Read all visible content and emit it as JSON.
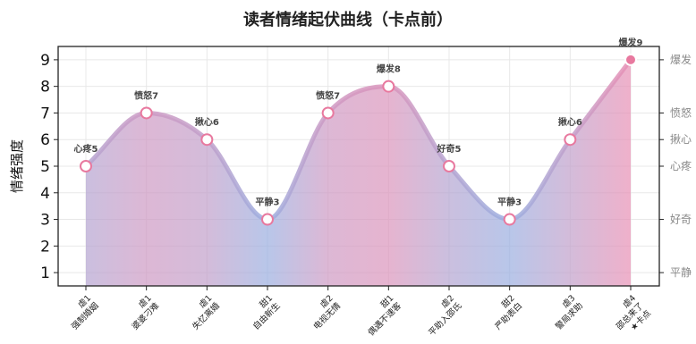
{
  "chart_data": {
    "type": "area",
    "title": "读者情绪起伏曲线（卡点前）",
    "ylabel": "情绪强度",
    "xlabel": "",
    "ylim": [
      0.5,
      9.5
    ],
    "yticks": [
      1,
      2,
      3,
      4,
      5,
      6,
      7,
      8,
      9
    ],
    "grid": true,
    "legend": "none",
    "categories": [
      [
        "虐1",
        "强制婚姻"
      ],
      [
        "虐1",
        "婆婆刁难"
      ],
      [
        "虐1",
        "失忆离婚"
      ],
      [
        "甜1",
        "自由新生"
      ],
      [
        "虐2",
        "电视无情"
      ],
      [
        "甜1",
        "偶遇不速客"
      ],
      [
        "虐2",
        "平助入邵氏"
      ],
      [
        "甜2",
        "严助表白"
      ],
      [
        "虐3",
        "警局求助"
      ],
      [
        "虐4",
        "邵总来了",
        "★卡点"
      ]
    ],
    "values": [
      5,
      7,
      6,
      3,
      7,
      8,
      5,
      3,
      6,
      9
    ],
    "point_labels": [
      "心疼5",
      "愤怒7",
      "揪心6",
      "平静3",
      "愤怒7",
      "爆发8",
      "好奇5",
      "平静3",
      "揪心6",
      "爆发9"
    ],
    "right_axis": [
      {
        "value": 9,
        "label": "爆发"
      },
      {
        "value": 7,
        "label": "愤怒"
      },
      {
        "value": 6,
        "label": "揪心"
      },
      {
        "value": 5,
        "label": "心疼"
      },
      {
        "value": 3,
        "label": "好奇"
      },
      {
        "value": 1,
        "label": "平静"
      }
    ],
    "colors": {
      "pink": "#e88fb4",
      "blue": "#9aaee0",
      "grid": "#e8e8e8",
      "axis": "#222222",
      "marker_last": "#e8799f"
    }
  }
}
